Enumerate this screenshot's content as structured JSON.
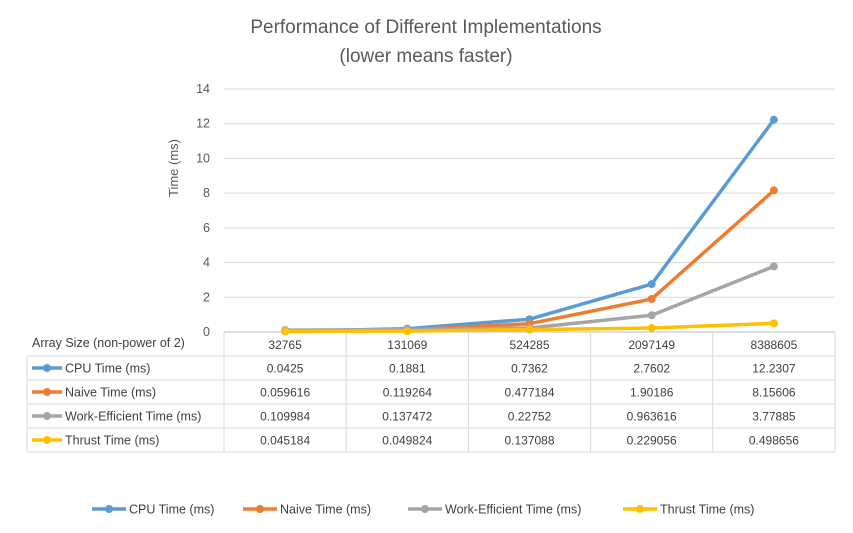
{
  "chart_data": {
    "type": "line",
    "title_line1": "Performance of Different Implementations",
    "title_line2": "(lower means faster)",
    "ylabel": "Time (ms)",
    "xlabel": "Array Size (non-power of 2)",
    "ylim": [
      0,
      14
    ],
    "yticks": [
      "0",
      "2",
      "4",
      "6",
      "8",
      "10",
      "12",
      "14"
    ],
    "grid": true,
    "legend_position": "bottom",
    "categories": [
      "32765",
      "131069",
      "524285",
      "2097149",
      "8388605"
    ],
    "series": [
      {
        "name": "CPU Time (ms)",
        "color": "#5B9BD5",
        "values": [
          0.0425,
          0.1881,
          0.7362,
          2.7602,
          12.2307
        ],
        "labels": [
          "0.0425",
          "0.1881",
          "0.7362",
          "2.7602",
          "12.2307"
        ]
      },
      {
        "name": "Naive Time (ms)",
        "color": "#ED7D31",
        "values": [
          0.059616,
          0.119264,
          0.477184,
          1.90186,
          8.15606
        ],
        "labels": [
          "0.059616",
          "0.119264",
          "0.477184",
          "1.90186",
          "8.15606"
        ]
      },
      {
        "name": "Work-Efficient Time (ms)",
        "color": "#A5A5A5",
        "values": [
          0.109984,
          0.137472,
          0.22752,
          0.963616,
          3.77885
        ],
        "labels": [
          "0.109984",
          "0.137472",
          "0.22752",
          "0.963616",
          "3.77885"
        ]
      },
      {
        "name": "Thrust Time (ms)",
        "color": "#FFC000",
        "values": [
          0.045184,
          0.049824,
          0.137088,
          0.229056,
          0.498656
        ],
        "labels": [
          "0.045184",
          "0.049824",
          "0.137088",
          "0.229056",
          "0.498656"
        ]
      }
    ]
  }
}
